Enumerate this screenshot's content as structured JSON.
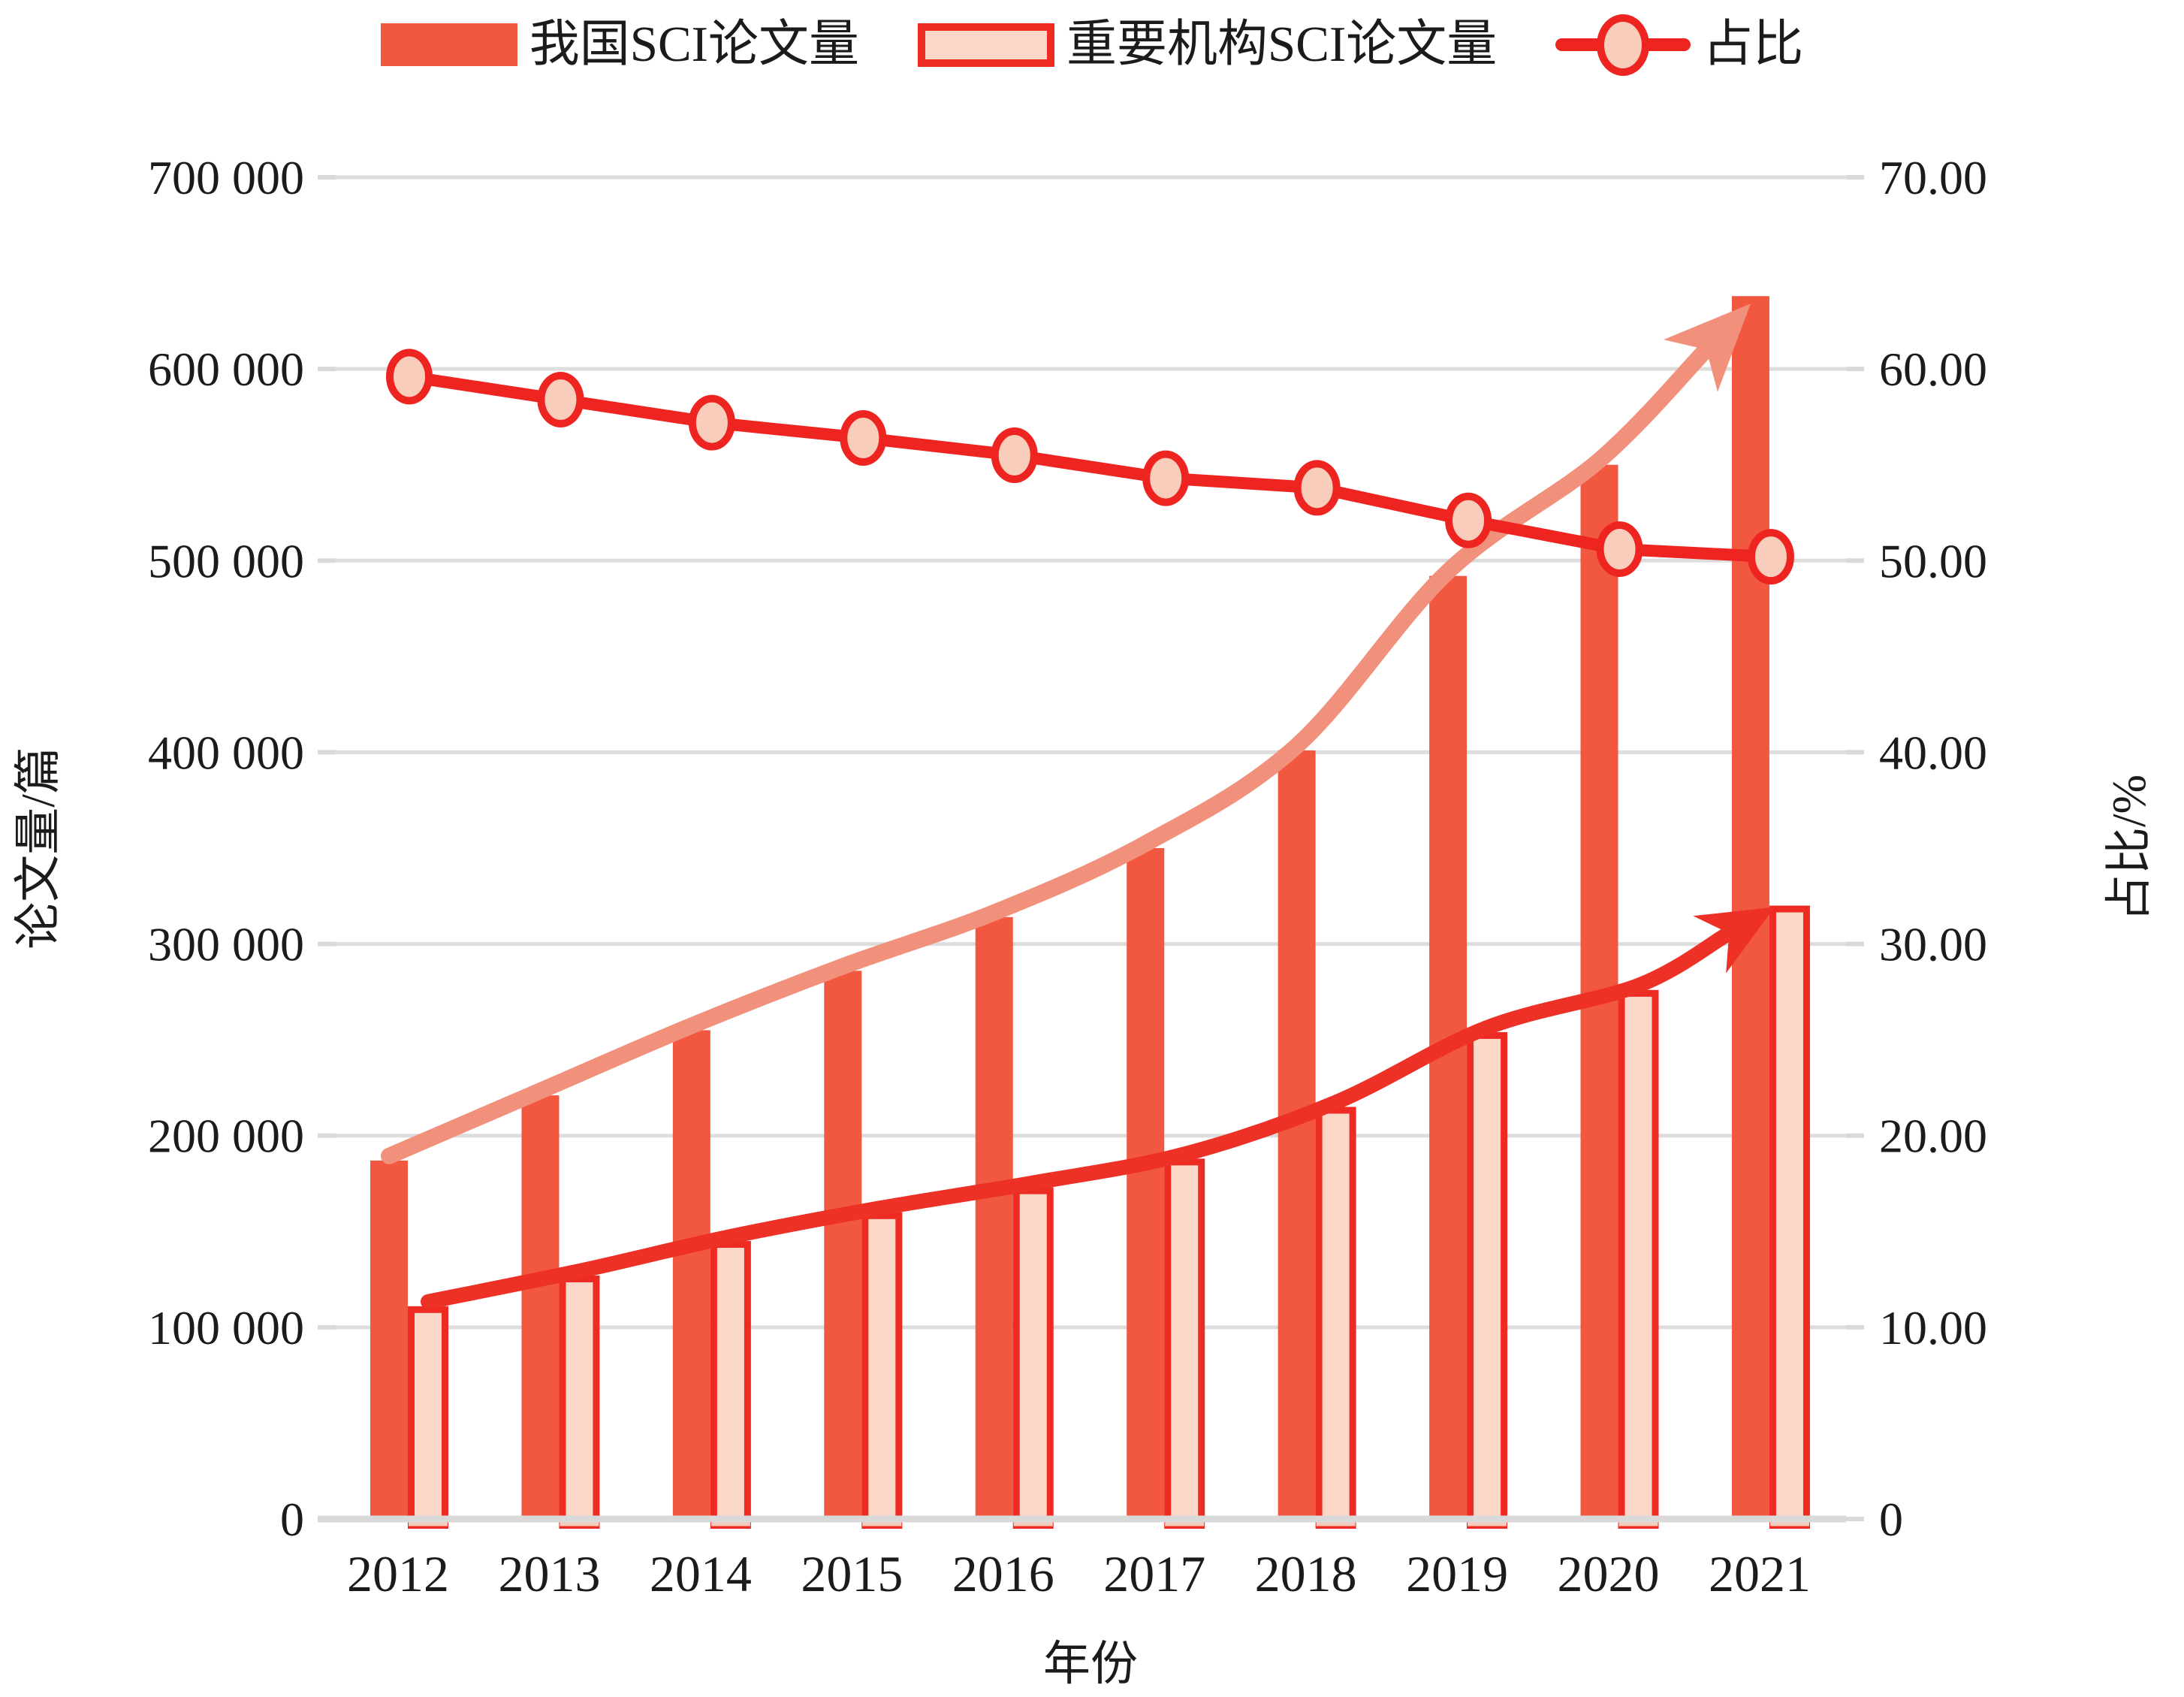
{
  "chart_data": {
    "type": "bar",
    "subtype": "grouped-bars-with-line-and-trend-arrows",
    "title": "",
    "categories": [
      "2012",
      "2013",
      "2014",
      "2015",
      "2016",
      "2017",
      "2018",
      "2019",
      "2020",
      "2021"
    ],
    "series": [
      {
        "name": "我国SCI论文量",
        "type": "bar",
        "axis": "left",
        "values": [
          187000,
          221000,
          255000,
          286000,
          314000,
          350000,
          401000,
          492000,
          550000,
          638000
        ]
      },
      {
        "name": "重要机构SCI论文量",
        "type": "bar",
        "axis": "left",
        "values": [
          111000,
          127000,
          145000,
          160000,
          173000,
          188000,
          215000,
          254000,
          276000,
          320000
        ]
      },
      {
        "name": "占比",
        "type": "line",
        "axis": "right",
        "values": [
          59.6,
          58.4,
          57.2,
          56.4,
          55.5,
          54.3,
          53.8,
          52.1,
          50.6,
          50.2
        ]
      }
    ],
    "left_axis": {
      "title": "论文量/篇",
      "min": 0,
      "max": 700000,
      "step": 100000,
      "tick_labels": [
        "0",
        "100 000",
        "200 000",
        "300 000",
        "400 000",
        "500 000",
        "600 000",
        "700 000"
      ]
    },
    "right_axis": {
      "title": "占比/%",
      "min": 0,
      "max": 70,
      "step": 10,
      "tick_labels": [
        "0",
        "10.00",
        "20.00",
        "30.00",
        "40.00",
        "50.00",
        "60.00",
        "70.00"
      ]
    },
    "x_axis": {
      "title": "年份"
    },
    "grid": true,
    "legend_position": "top",
    "annotations": [
      {
        "type": "trend-arrow",
        "follows": "我国SCI论文量",
        "color_key": "trend_light"
      },
      {
        "type": "trend-arrow",
        "follows": "重要机构SCI论文量",
        "color_key": "trend_red"
      }
    ]
  },
  "legend": {
    "items": [
      {
        "label": "我国SCI论文量",
        "swatch": "solid-bar"
      },
      {
        "label": "重要机构SCI论文量",
        "swatch": "outlined-bar"
      },
      {
        "label": "占比",
        "swatch": "line-marker"
      }
    ]
  },
  "colors": {
    "bar_primary": "#F25840",
    "bar_secondary_fill": "#FAD7C6",
    "bar_secondary_stroke": "#EE2B23",
    "ratio_line": "#EE2420",
    "marker_fill": "#F8CDBB",
    "trend_light": "#F2917B",
    "trend_red": "#ED3126",
    "grid": "#DDDDDD",
    "axis": "#D9D9D9",
    "text": "#1B1B1B"
  }
}
